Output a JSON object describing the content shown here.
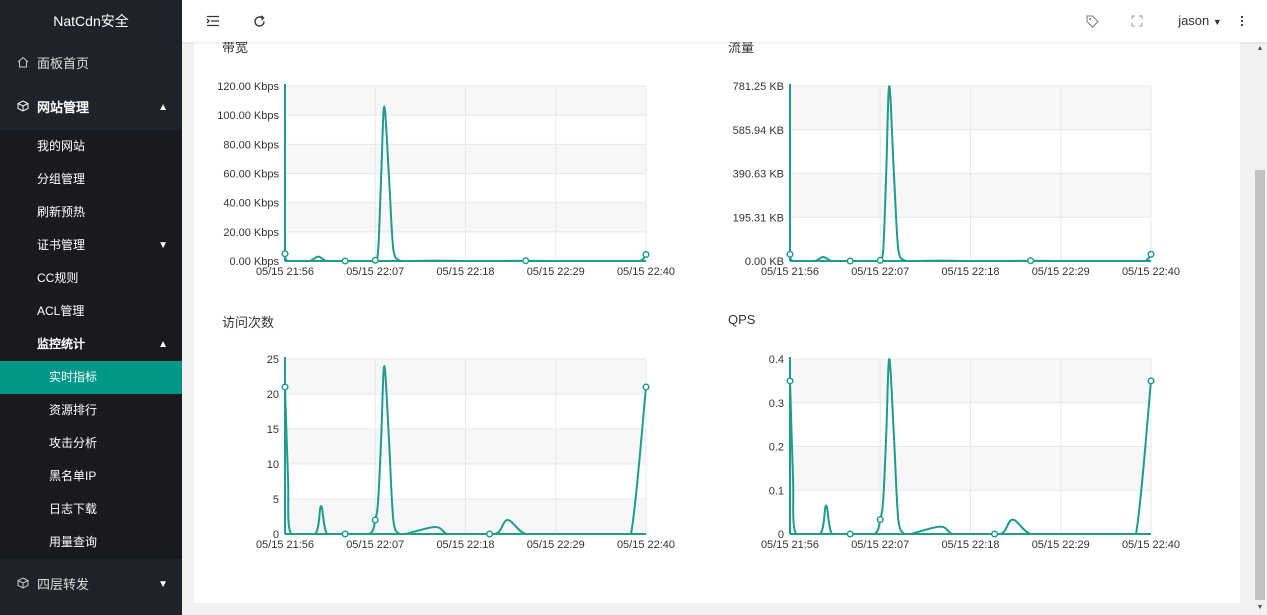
{
  "app": {
    "title": "NatCdn安全"
  },
  "sidebar": {
    "items": [
      {
        "label": "面板首页",
        "icon": "home-icon"
      },
      {
        "label": "网站管理",
        "icon": "cube-icon",
        "expanded": true,
        "children": [
          {
            "label": "我的网站"
          },
          {
            "label": "分组管理"
          },
          {
            "label": "刷新预热"
          },
          {
            "label": "证书管理",
            "collapsed": true
          },
          {
            "label": "CC规则"
          },
          {
            "label": "ACL管理"
          },
          {
            "label": "监控统计",
            "expanded": true,
            "children": [
              {
                "label": "实时指标",
                "active": true
              },
              {
                "label": "资源排行"
              },
              {
                "label": "攻击分析"
              },
              {
                "label": "黑名单IP"
              },
              {
                "label": "日志下载"
              },
              {
                "label": "用量查询"
              }
            ]
          }
        ]
      },
      {
        "label": "四层转发",
        "icon": "cube-icon",
        "collapsed": true
      }
    ]
  },
  "header": {
    "user": "jason",
    "icons": [
      "menu-collapse-icon",
      "refresh-icon",
      "tag-icon",
      "fullscreen-icon",
      "caret-down-icon",
      "more-vertical-icon"
    ]
  },
  "charts": {
    "bandwidth": {
      "title": "带宽"
    },
    "traffic": {
      "title": "流量"
    },
    "visits": {
      "title": "访问次数"
    },
    "qps": {
      "title": "QPS"
    }
  },
  "colors": {
    "accent": "#009688",
    "sidebar_bg": "#20222a",
    "line": "#1f9c8c"
  },
  "chart_data": [
    {
      "id": "bandwidth",
      "type": "line",
      "title": "带宽",
      "x_tick_labels": [
        "05/15 21:56",
        "05/15 22:07",
        "05/15 22:18",
        "05/15 22:29",
        "05/15 22:40"
      ],
      "y_tick_labels": [
        "0.00 Kbps",
        "20.00 Kbps",
        "40.00 Kbps",
        "60.00 Kbps",
        "80.00 Kbps",
        "100.00 Kbps",
        "120.00 Kbps"
      ],
      "ylim": [
        0,
        120
      ],
      "series": [
        {
          "values": [
            [
              0.0,
              5
            ],
            [
              0.1,
              0
            ],
            [
              0.8,
              0
            ],
            [
              1.1,
              3
            ],
            [
              1.4,
              0
            ],
            [
              2.0,
              0
            ],
            [
              2.8,
              0
            ],
            [
              3.0,
              0.5
            ],
            [
              3.1,
              8
            ],
            [
              3.2,
              60
            ],
            [
              3.3,
              106
            ],
            [
              3.45,
              60
            ],
            [
              3.6,
              8
            ],
            [
              3.8,
              0.5
            ],
            [
              4.0,
              0
            ],
            [
              5.0,
              0.3
            ],
            [
              6.0,
              0
            ],
            [
              7.0,
              0
            ],
            [
              8.0,
              0.2
            ],
            [
              9.0,
              0
            ],
            [
              10.0,
              0
            ],
            [
              11.0,
              0
            ],
            [
              11.2,
              0
            ],
            [
              11.8,
              0
            ],
            [
              12.0,
              4.5
            ]
          ],
          "markers": [
            [
              0.0,
              5
            ],
            [
              2.0,
              0
            ],
            [
              3.0,
              0.5
            ],
            [
              8.0,
              0.2
            ],
            [
              12.0,
              4.5
            ]
          ]
        }
      ]
    },
    {
      "id": "traffic",
      "type": "line",
      "title": "流量",
      "x_tick_labels": [
        "05/15 21:56",
        "05/15 22:07",
        "05/15 22:18",
        "05/15 22:29",
        "05/15 22:40"
      ],
      "y_tick_labels": [
        "0.00 KB",
        "195.31 KB",
        "390.63 KB",
        "585.94 KB",
        "781.25 KB"
      ],
      "ylim": [
        0,
        781.25
      ],
      "series": [
        {
          "values": [
            [
              0.0,
              30
            ],
            [
              0.1,
              0
            ],
            [
              0.8,
              0
            ],
            [
              1.1,
              18
            ],
            [
              1.4,
              0
            ],
            [
              2.0,
              0
            ],
            [
              2.8,
              0
            ],
            [
              3.0,
              3
            ],
            [
              3.1,
              50
            ],
            [
              3.2,
              400
            ],
            [
              3.3,
              781.25
            ],
            [
              3.45,
              400
            ],
            [
              3.6,
              50
            ],
            [
              3.8,
              3
            ],
            [
              4.0,
              0
            ],
            [
              5.0,
              1.5
            ],
            [
              6.0,
              0
            ],
            [
              7.0,
              0
            ],
            [
              8.0,
              1.3
            ],
            [
              9.0,
              0
            ],
            [
              10.0,
              0
            ],
            [
              11.0,
              0
            ],
            [
              11.2,
              0
            ],
            [
              11.8,
              0
            ],
            [
              12.0,
              30
            ]
          ],
          "markers": [
            [
              0.0,
              30
            ],
            [
              2.0,
              0
            ],
            [
              3.0,
              3
            ],
            [
              8.0,
              1.3
            ],
            [
              12.0,
              30
            ]
          ]
        }
      ]
    },
    {
      "id": "visits",
      "type": "line",
      "title": "访问次数",
      "x_tick_labels": [
        "05/15 21:56",
        "05/15 22:07",
        "05/15 22:18",
        "05/15 22:29",
        "05/15 22:40"
      ],
      "y_tick_labels": [
        "0",
        "5",
        "10",
        "15",
        "20",
        "25"
      ],
      "ylim": [
        0,
        25
      ],
      "series": [
        {
          "values": [
            [
              0.0,
              21
            ],
            [
              0.1,
              8
            ],
            [
              0.2,
              0
            ],
            [
              1.0,
              0
            ],
            [
              1.2,
              4
            ],
            [
              1.4,
              0
            ],
            [
              2.0,
              0
            ],
            [
              2.8,
              0
            ],
            [
              3.0,
              2
            ],
            [
              3.1,
              5
            ],
            [
              3.2,
              14
            ],
            [
              3.3,
              24
            ],
            [
              3.45,
              14
            ],
            [
              3.6,
              2
            ],
            [
              3.8,
              0
            ],
            [
              4.0,
              0
            ],
            [
              5.0,
              1
            ],
            [
              5.4,
              0
            ],
            [
              6.0,
              0
            ],
            [
              7.0,
              0
            ],
            [
              7.4,
              2
            ],
            [
              8.0,
              0
            ],
            [
              9.0,
              0
            ],
            [
              10.0,
              0
            ],
            [
              11.0,
              0
            ],
            [
              11.5,
              0
            ],
            [
              12.0,
              21
            ]
          ],
          "markers": [
            [
              0.0,
              21
            ],
            [
              2.0,
              0
            ],
            [
              3.0,
              2
            ],
            [
              6.8,
              0
            ],
            [
              12.0,
              21
            ]
          ]
        }
      ]
    },
    {
      "id": "qps",
      "type": "line",
      "title": "QPS",
      "x_tick_labels": [
        "05/15 21:56",
        "05/15 22:07",
        "05/15 22:18",
        "05/15 22:29",
        "05/15 22:40"
      ],
      "y_tick_labels": [
        "0",
        "0.1",
        "0.2",
        "0.3",
        "0.4"
      ],
      "ylim": [
        0,
        0.4
      ],
      "series": [
        {
          "values": [
            [
              0.0,
              0.35
            ],
            [
              0.1,
              0.13
            ],
            [
              0.2,
              0
            ],
            [
              1.0,
              0
            ],
            [
              1.2,
              0.065
            ],
            [
              1.4,
              0
            ],
            [
              2.0,
              0
            ],
            [
              2.8,
              0
            ],
            [
              3.0,
              0.033
            ],
            [
              3.1,
              0.08
            ],
            [
              3.2,
              0.23
            ],
            [
              3.3,
              0.4
            ],
            [
              3.45,
              0.23
            ],
            [
              3.6,
              0.033
            ],
            [
              3.8,
              0
            ],
            [
              4.0,
              0
            ],
            [
              5.0,
              0.017
            ],
            [
              5.4,
              0
            ],
            [
              6.0,
              0
            ],
            [
              7.0,
              0
            ],
            [
              7.4,
              0.033
            ],
            [
              8.0,
              0
            ],
            [
              9.0,
              0
            ],
            [
              10.0,
              0
            ],
            [
              11.0,
              0
            ],
            [
              11.5,
              0
            ],
            [
              12.0,
              0.35
            ]
          ],
          "markers": [
            [
              0.0,
              0.35
            ],
            [
              2.0,
              0
            ],
            [
              3.0,
              0.033
            ],
            [
              6.8,
              0
            ],
            [
              12.0,
              0.35
            ]
          ]
        }
      ]
    }
  ]
}
